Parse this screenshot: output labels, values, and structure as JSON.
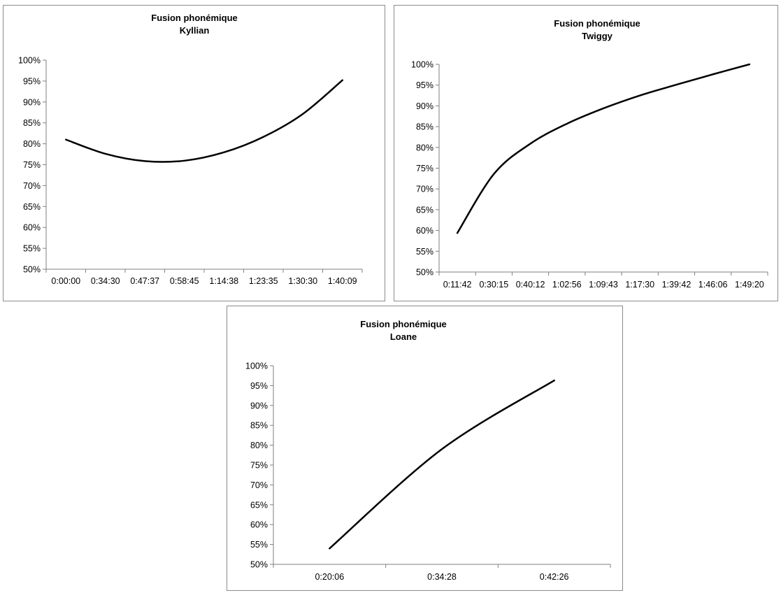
{
  "chart_data": [
    {
      "type": "line",
      "title": "Fusion phonémique",
      "subtitle": "Kyllian",
      "xlabel": "",
      "ylabel": "",
      "categories": [
        "0:00:00",
        "0:34:30",
        "0:47:37",
        "0:58:45",
        "1:14:38",
        "1:23:35",
        "1:30:30",
        "1:40:09"
      ],
      "yticks": [
        "50%",
        "55%",
        "60%",
        "65%",
        "70%",
        "75%",
        "80%",
        "85%",
        "90%",
        "95%",
        "100%"
      ],
      "ylim": [
        0.5,
        1.0
      ],
      "grid": false,
      "legend": "none",
      "line_color": "#000000",
      "series": [
        {
          "values": [
            0.81,
            0.776,
            0.7585,
            0.7595,
            0.7795,
            0.8165,
            0.8715,
            0.952
          ]
        }
      ]
    },
    {
      "type": "line",
      "title": "Fusion phonémique",
      "subtitle": "Twiggy",
      "xlabel": "",
      "ylabel": "",
      "categories": [
        "0:11:42",
        "0:30:15",
        "0:40:12",
        "1:02:56",
        "1:09:43",
        "1:17:30",
        "1:39:42",
        "1:46:06",
        "1:49:20"
      ],
      "yticks": [
        "50%",
        "55%",
        "60%",
        "65%",
        "70%",
        "75%",
        "80%",
        "85%",
        "90%",
        "95%",
        "100%"
      ],
      "ylim": [
        0.5,
        1.0
      ],
      "grid": false,
      "legend": "none",
      "line_color": "#000000",
      "series": [
        {
          "values": [
            0.594,
            0.736,
            0.809,
            0.857,
            0.894,
            0.925,
            0.951,
            0.976,
            1.0
          ]
        }
      ]
    },
    {
      "type": "line",
      "title": "Fusion phonémique",
      "subtitle": "Loane",
      "xlabel": "",
      "ylabel": "",
      "categories": [
        "0:20:06",
        "0:34:28",
        "0:42:26"
      ],
      "yticks": [
        "50%",
        "55%",
        "60%",
        "65%",
        "70%",
        "75%",
        "80%",
        "85%",
        "90%",
        "95%",
        "100%"
      ],
      "ylim": [
        0.5,
        1.0
      ],
      "grid": false,
      "legend": "none",
      "line_color": "#000000",
      "series": [
        {
          "values": [
            0.54,
            0.79,
            0.963
          ]
        }
      ]
    }
  ]
}
